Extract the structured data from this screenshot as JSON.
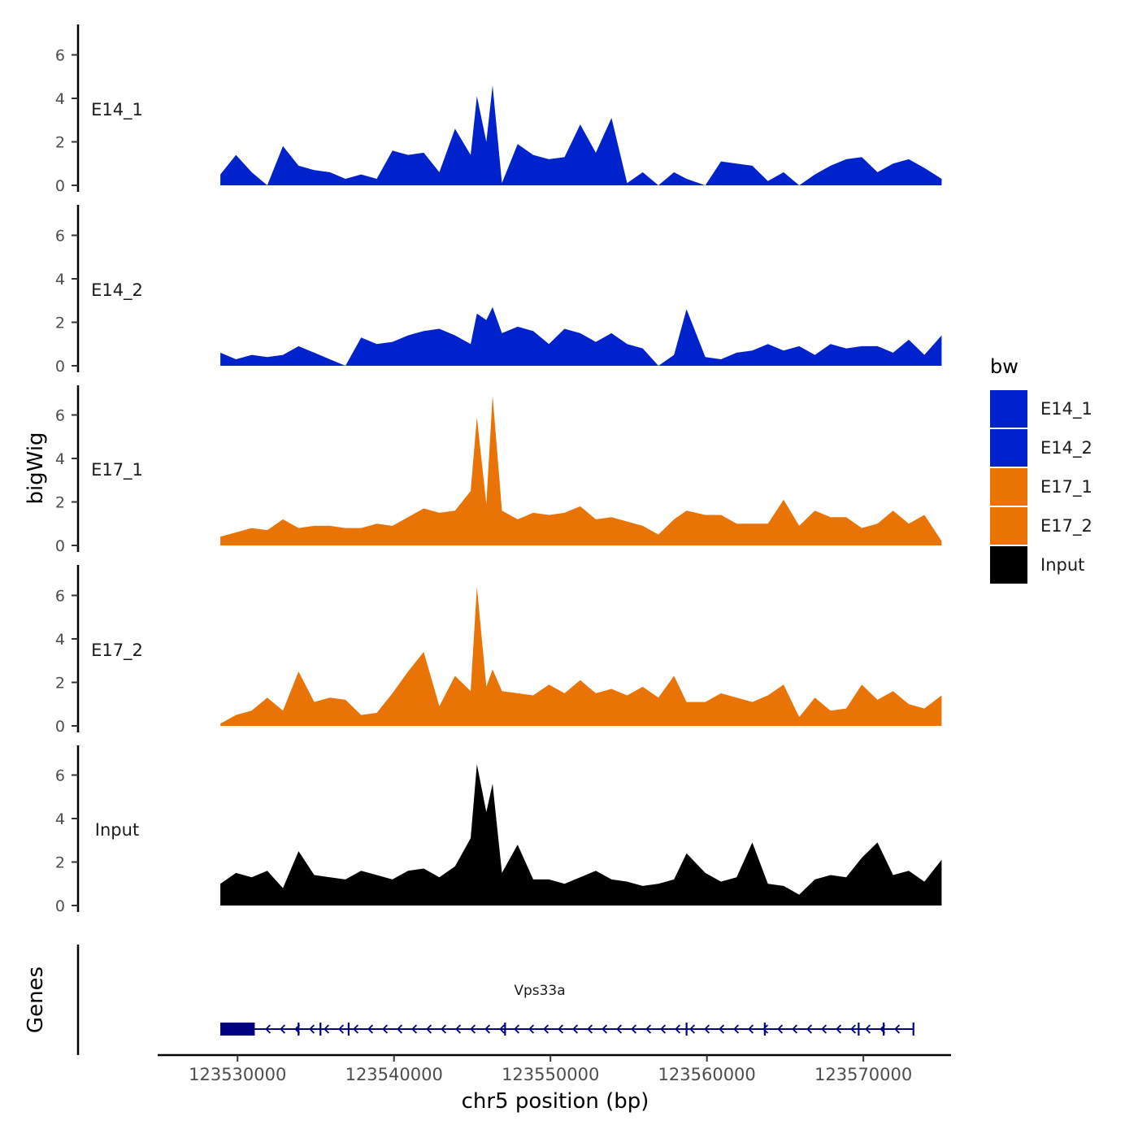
{
  "colors": {
    "E14_1": "#0022CC",
    "E14_2": "#0022CC",
    "E17_1": "#E97305",
    "E17_2": "#E97305",
    "Input": "#000000",
    "gene": "#000080"
  },
  "axes": {
    "y_title": "bigWig",
    "genes_title": "Genes",
    "x_title": "chr5 position (bp)",
    "y_ticks": [
      "0",
      "2",
      "4",
      "6"
    ],
    "x_ticks": [
      "123530000",
      "123540000",
      "123550000",
      "123560000",
      "123570000"
    ]
  },
  "legend": {
    "title": "bw",
    "labels": [
      "E14_1",
      "E14_2",
      "E17_1",
      "E17_2",
      "Input"
    ]
  },
  "gene": {
    "name": "Vps33a",
    "start": 123528900,
    "end": 123573200,
    "thick_end": 123531100,
    "strand": "-"
  },
  "chart_data": {
    "type": "area",
    "title": "",
    "xlabel": "chr5 position (bp)",
    "ylabel": "bigWig",
    "xlim": [
      123525000,
      123575500
    ],
    "ylim": [
      0,
      7.3
    ],
    "x": [
      123528900,
      123529900,
      123530900,
      123531900,
      123532900,
      123533900,
      123534900,
      123535900,
      123536900,
      123537900,
      123538900,
      123539900,
      123540900,
      123541900,
      123542900,
      123543900,
      123544900,
      123545300,
      123545900,
      123546300,
      123546900,
      123547900,
      123548900,
      123549900,
      123550900,
      123551900,
      123552900,
      123553900,
      123554900,
      123555900,
      123556900,
      123557900,
      123558700,
      123559900,
      123560900,
      123561900,
      123562900,
      123563900,
      123564900,
      123565900,
      123566900,
      123567900,
      123568900,
      123569900,
      123570900,
      123571900,
      123572900,
      123573900,
      123575000
    ],
    "series": [
      {
        "name": "E14_1",
        "values": [
          0.5,
          1.4,
          0.6,
          0.0,
          1.8,
          0.9,
          0.7,
          0.6,
          0.3,
          0.5,
          0.3,
          1.6,
          1.4,
          1.5,
          0.6,
          2.6,
          1.4,
          4.1,
          2.0,
          4.6,
          0.1,
          1.9,
          1.4,
          1.2,
          1.3,
          2.8,
          1.5,
          3.1,
          0.1,
          0.6,
          0.0,
          0.6,
          0.3,
          0.0,
          1.1,
          1.0,
          0.9,
          0.2,
          0.6,
          0.0,
          0.5,
          0.9,
          1.2,
          1.3,
          0.6,
          1.0,
          1.2,
          0.8,
          0.3
        ]
      },
      {
        "name": "E14_2",
        "values": [
          0.6,
          0.3,
          0.5,
          0.4,
          0.5,
          0.9,
          0.6,
          0.3,
          0.0,
          1.3,
          1.0,
          1.1,
          1.4,
          1.6,
          1.7,
          1.4,
          1.0,
          2.4,
          2.1,
          2.7,
          1.5,
          1.8,
          1.6,
          1.0,
          1.7,
          1.5,
          1.1,
          1.5,
          1.0,
          0.8,
          0.0,
          0.5,
          2.6,
          0.4,
          0.3,
          0.6,
          0.7,
          1.0,
          0.7,
          0.9,
          0.5,
          1.0,
          0.8,
          0.9,
          0.9,
          0.6,
          1.2,
          0.5,
          1.4
        ]
      },
      {
        "name": "E17_1",
        "values": [
          0.4,
          0.6,
          0.8,
          0.7,
          1.2,
          0.8,
          0.9,
          0.9,
          0.8,
          0.8,
          1.0,
          0.9,
          1.3,
          1.7,
          1.5,
          1.6,
          2.5,
          5.9,
          1.9,
          6.9,
          1.6,
          1.2,
          1.5,
          1.4,
          1.5,
          1.8,
          1.2,
          1.3,
          1.1,
          0.9,
          0.5,
          1.2,
          1.6,
          1.4,
          1.4,
          1.0,
          1.0,
          1.0,
          2.1,
          0.9,
          1.6,
          1.3,
          1.3,
          0.8,
          1.0,
          1.6,
          1.0,
          1.4,
          0.2
        ]
      },
      {
        "name": "E17_2",
        "values": [
          0.1,
          0.5,
          0.7,
          1.3,
          0.7,
          2.5,
          1.1,
          1.3,
          1.2,
          0.5,
          0.6,
          1.5,
          2.5,
          3.4,
          0.9,
          2.3,
          1.6,
          6.4,
          1.8,
          2.6,
          1.6,
          1.5,
          1.4,
          1.9,
          1.5,
          2.1,
          1.5,
          1.7,
          1.4,
          1.8,
          1.3,
          2.3,
          1.1,
          1.1,
          1.5,
          1.3,
          1.1,
          1.4,
          1.9,
          0.4,
          1.3,
          0.7,
          0.8,
          1.9,
          1.2,
          1.6,
          1.0,
          0.8,
          1.4
        ]
      },
      {
        "name": "Input",
        "values": [
          1.0,
          1.5,
          1.3,
          1.6,
          0.8,
          2.5,
          1.4,
          1.3,
          1.2,
          1.6,
          1.4,
          1.2,
          1.6,
          1.7,
          1.3,
          1.8,
          3.1,
          6.5,
          4.3,
          5.6,
          1.5,
          2.8,
          1.2,
          1.2,
          1.0,
          1.3,
          1.6,
          1.2,
          1.1,
          0.9,
          1.0,
          1.2,
          2.4,
          1.5,
          1.1,
          1.3,
          2.9,
          1.0,
          0.9,
          0.5,
          1.2,
          1.4,
          1.3,
          2.2,
          2.9,
          1.4,
          1.6,
          1.1,
          2.1
        ]
      }
    ]
  }
}
